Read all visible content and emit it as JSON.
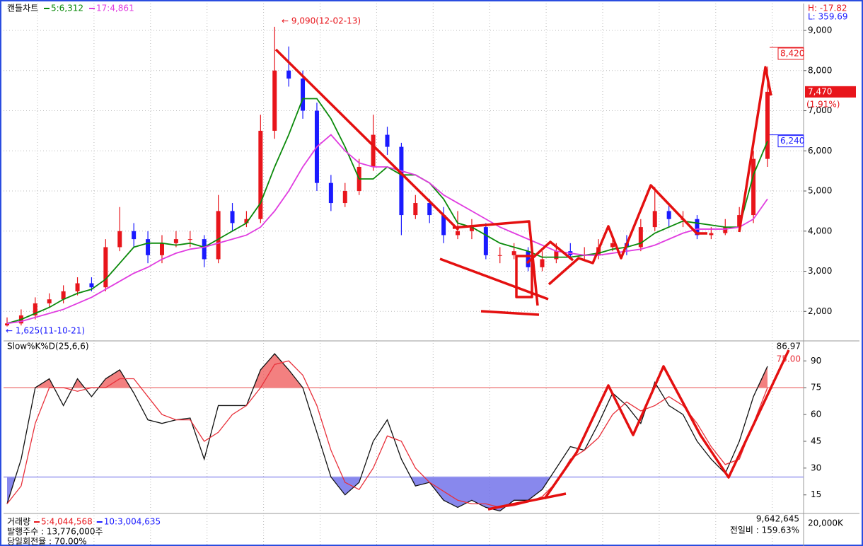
{
  "chart_data": [
    {
      "type": "candlestick",
      "title": "캔들차트",
      "open": [
        1650,
        1700,
        1900,
        2200,
        2300,
        2500,
        2700,
        2600,
        3600,
        4000,
        3800,
        3400,
        3700,
        3800,
        3800,
        3300,
        4500,
        4200,
        4300,
        6500,
        8000,
        7800,
        7000,
        5200,
        4700,
        5000,
        5600,
        6400,
        6100,
        4400,
        4700,
        4400,
        3900,
        4000,
        4100,
        3400,
        3400,
        3500,
        3100,
        3300,
        3500,
        3400,
        3400,
        3600,
        3700,
        3600,
        4100,
        4500,
        4300,
        4300,
        3900,
        3950,
        4100,
        4400,
        5800
      ],
      "high": [
        1850,
        2050,
        2350,
        2450,
        2650,
        2850,
        2850,
        3800,
        4600,
        4200,
        4000,
        3900,
        4000,
        4000,
        3900,
        4900,
        4700,
        4500,
        6900,
        9090,
        8600,
        8000,
        7200,
        5400,
        5200,
        5800,
        6900,
        6600,
        6200,
        4900,
        4800,
        4600,
        4500,
        4300,
        4200,
        3600,
        3700,
        3600,
        3500,
        3700,
        3700,
        3600,
        3800,
        3900,
        3900,
        4300,
        5100,
        4700,
        4500,
        4400,
        4100,
        4300,
        4600,
        6000,
        8100
      ],
      "low": [
        1625,
        1650,
        1800,
        2100,
        2200,
        2400,
        2500,
        2500,
        3500,
        3600,
        3200,
        3200,
        3600,
        3600,
        3100,
        3200,
        4000,
        4100,
        4200,
        6300,
        7600,
        6800,
        5000,
        4500,
        4600,
        4900,
        5500,
        5900,
        3900,
        4300,
        4200,
        3700,
        3800,
        3800,
        3300,
        3200,
        3300,
        3000,
        3000,
        3200,
        3300,
        3300,
        3300,
        3500,
        3400,
        3500,
        4000,
        4100,
        4100,
        3800,
        3800,
        3900,
        4000,
        4200,
        5600
      ],
      "close": [
        1700,
        1900,
        2200,
        2300,
        2500,
        2700,
        2600,
        3600,
        4000,
        3800,
        3400,
        3700,
        3800,
        3800,
        3300,
        4500,
        4200,
        4300,
        6500,
        8000,
        7800,
        7000,
        5200,
        4700,
        5000,
        5600,
        6400,
        6100,
        4400,
        4700,
        4400,
        3900,
        4000,
        4100,
        3400,
        3400,
        3500,
        3100,
        3300,
        3500,
        3400,
        3400,
        3600,
        3700,
        3600,
        4100,
        4500,
        4300,
        4300,
        3900,
        3950,
        4100,
        4400,
        5800,
        7470
      ],
      "up_color": "#e8151b",
      "down_color": "#1a1aff",
      "series": [
        {
          "name": "5:6,312",
          "color": "#0a8a0a",
          "values": [
            1700,
            1800,
            1950,
            2100,
            2300,
            2450,
            2550,
            2800,
            3200,
            3600,
            3700,
            3700,
            3650,
            3700,
            3600,
            3800,
            4000,
            4200,
            4700,
            5600,
            6400,
            7300,
            7300,
            6800,
            6100,
            5300,
            5300,
            5600,
            5400,
            5400,
            5200,
            4800,
            4200,
            4100,
            3900,
            3700,
            3600,
            3500,
            3350,
            3350,
            3350,
            3400,
            3450,
            3550,
            3600,
            3700,
            3950,
            4100,
            4250,
            4200,
            4150,
            4100,
            4100,
            5400,
            6240
          ]
        },
        {
          "name": "17:4,861",
          "color": "#e03ce0",
          "values": [
            1700,
            1750,
            1850,
            1950,
            2050,
            2200,
            2350,
            2550,
            2750,
            2950,
            3100,
            3300,
            3450,
            3550,
            3600,
            3700,
            3800,
            3900,
            4100,
            4500,
            5000,
            5600,
            6100,
            6400,
            6000,
            5700,
            5600,
            5600,
            5500,
            5400,
            5200,
            4900,
            4700,
            4500,
            4300,
            4100,
            3950,
            3800,
            3650,
            3500,
            3450,
            3400,
            3400,
            3450,
            3500,
            3550,
            3650,
            3800,
            3950,
            4050,
            4050,
            4050,
            4100,
            4300,
            4800
          ]
        }
      ],
      "ylim": [
        1300,
        9670
      ],
      "yticks": [
        {
          "value": 2000,
          "label": "2,000"
        },
        {
          "value": 3000,
          "label": "3,000"
        },
        {
          "value": 4000,
          "label": "4,000"
        },
        {
          "value": 5000,
          "label": "5,000"
        },
        {
          "value": 6000,
          "label": "6,000"
        },
        {
          "value": 7000,
          "label": "7,000"
        },
        {
          "value": 8000,
          "label": "8,000"
        },
        {
          "value": 9000,
          "label": "9,000"
        }
      ],
      "high_note": "← 9,090(12-02-13)",
      "low_note": "← 1,625(11-10-21)",
      "ratio_high": "H: -17.82",
      "ratio_low": "L: 359.69",
      "price_tags": [
        {
          "value": 8420,
          "label": "8,420",
          "color": "#e8151b",
          "style": "outline"
        },
        {
          "value": 7470,
          "label": "7,470",
          "color": "#e8151b",
          "style": "filled"
        },
        {
          "value": 6240,
          "label": "6,240",
          "color": "#1a1aff",
          "style": "outline"
        }
      ],
      "change": "(1.91%)"
    },
    {
      "type": "line",
      "title": "Slow%K%D(25,6,6)",
      "series": [
        {
          "color": "#111111",
          "last_label": "86.97",
          "values": [
            10,
            35,
            75,
            80,
            65,
            80,
            70,
            80,
            85,
            72,
            57,
            55,
            57,
            58,
            35,
            65,
            65,
            65,
            85,
            94,
            85,
            75,
            50,
            25,
            15,
            22,
            45,
            57,
            35,
            20,
            22,
            12,
            8,
            12,
            8,
            6,
            12,
            12,
            18,
            30,
            42,
            40,
            55,
            72,
            65,
            55,
            78,
            65,
            60,
            45,
            35,
            27,
            45,
            70,
            86.97
          ]
        },
        {
          "color": "#e8303a",
          "last_label": "75.00",
          "values": [
            10,
            20,
            55,
            75,
            75,
            73,
            75,
            75,
            80,
            80,
            70,
            60,
            57,
            57,
            45,
            50,
            60,
            65,
            75,
            88,
            90,
            82,
            65,
            40,
            22,
            18,
            30,
            48,
            45,
            30,
            22,
            17,
            12,
            10,
            10,
            8,
            9,
            11,
            14,
            22,
            35,
            40,
            47,
            60,
            67,
            62,
            65,
            70,
            65,
            55,
            42,
            32,
            35,
            55,
            75
          ]
        }
      ],
      "levels": [
        {
          "value": 75,
          "color": "#f08a8a",
          "fill": "#f06060"
        },
        {
          "value": 25,
          "color": "#9a9af0",
          "fill": "#6a6ae8"
        }
      ],
      "ylim": [
        5,
        100
      ],
      "yticks": [
        15,
        30,
        45,
        60,
        75,
        90
      ]
    },
    {
      "type": "volume",
      "title": "거래량",
      "series": [
        {
          "name": "5:4,044,568",
          "color": "#e8151b"
        },
        {
          "name": "10:3,004,635",
          "color": "#1a1aff"
        }
      ],
      "shares": "발행주수 : 13,776,000주",
      "turnover": "당일회전율 : 70.00%",
      "last_volume": "9,642,645",
      "prev_ratio": "전일비 : 159.63%",
      "axis_label": "20,000K"
    }
  ]
}
